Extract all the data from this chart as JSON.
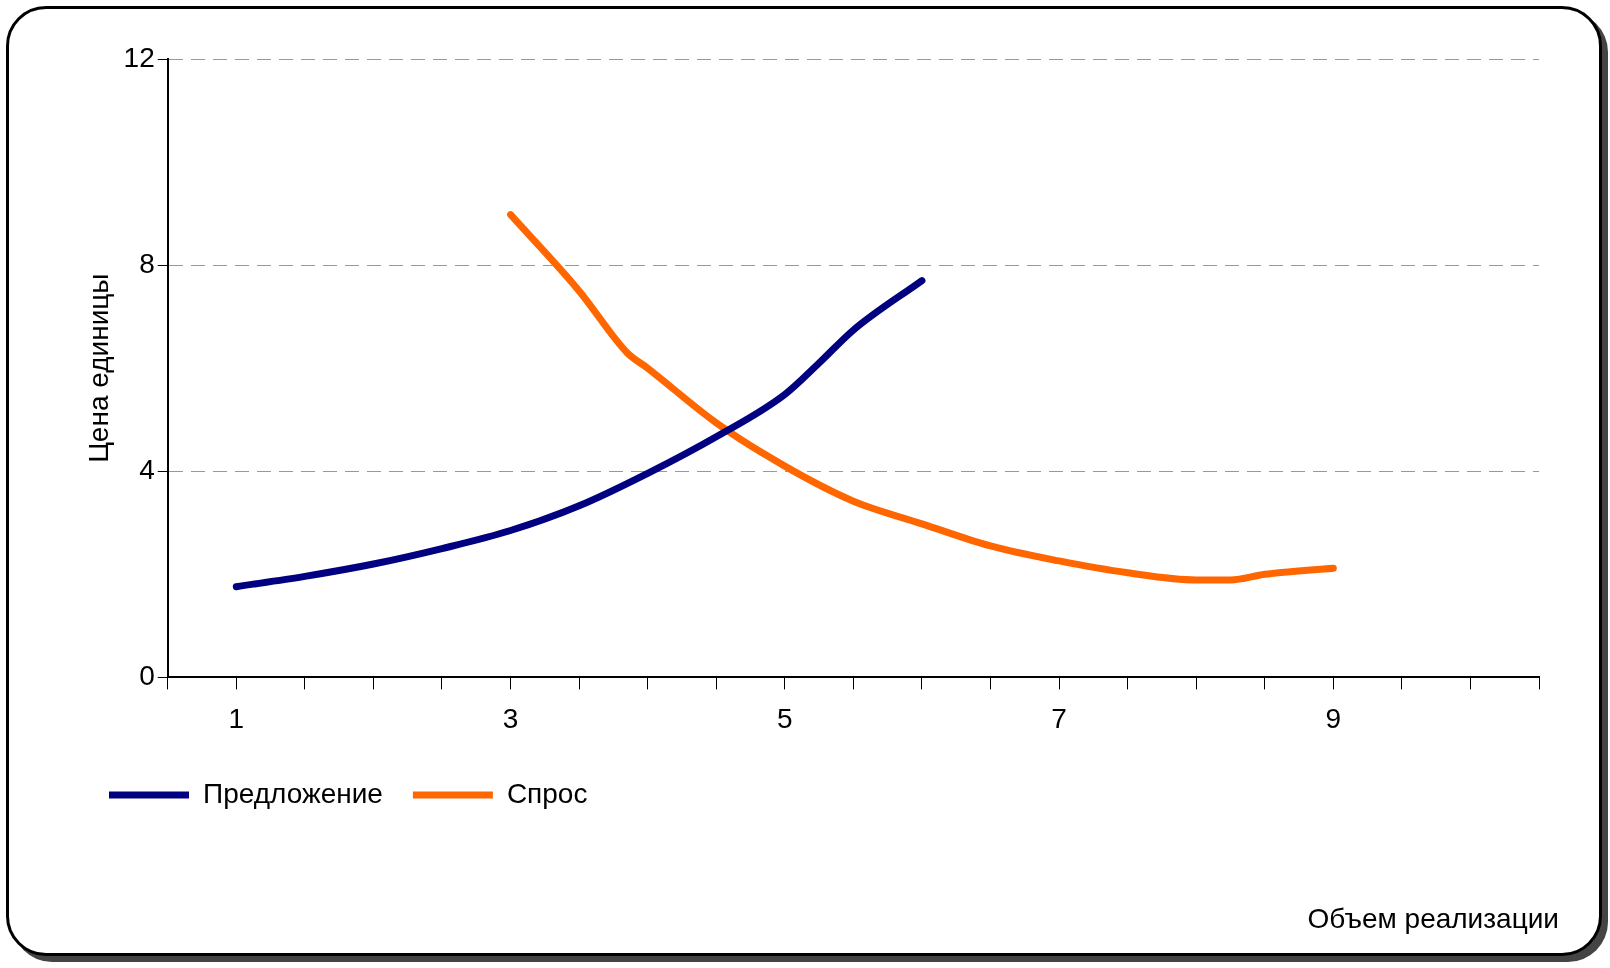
{
  "chart_data": {
    "type": "line",
    "annotations": [
      "Объем реализации"
    ],
    "ylabel": "Цена единицы",
    "xlim": [
      0.5,
      10.5
    ],
    "xticks": [
      {
        "value": 0.5,
        "label": null
      },
      1,
      {
        "value": 1.5,
        "label": null
      },
      {
        "value": 2,
        "label": null
      },
      {
        "value": 2.5,
        "label": null
      },
      3,
      {
        "value": 3.5,
        "label": null
      },
      {
        "value": 4,
        "label": null
      },
      {
        "value": 4.5,
        "label": null
      },
      5,
      {
        "value": 5.5,
        "label": null
      },
      {
        "value": 6,
        "label": null
      },
      {
        "value": 6.5,
        "label": null
      },
      7,
      {
        "value": 7.5,
        "label": null
      },
      {
        "value": 8,
        "label": null
      },
      {
        "value": 8.5,
        "label": null
      },
      9,
      {
        "value": 9.5,
        "label": null
      },
      {
        "value": 10,
        "label": null
      },
      {
        "value": 10.5,
        "label": null
      }
    ],
    "ylim": [
      0,
      12
    ],
    "yticks": [
      0,
      4,
      8,
      12
    ],
    "grid": "y",
    "legend": "bottom",
    "marker": "none",
    "line_style": "solid",
    "series": [
      {
        "name": "Предложение",
        "color": "#000080",
        "x": [
          1,
          1.5,
          2,
          2.5,
          3,
          3.5,
          4,
          4.5,
          5,
          5.25,
          5.5,
          6
        ],
        "values": [
          1.76,
          1.96,
          2.2,
          2.5,
          2.85,
          3.33,
          3.96,
          4.67,
          5.49,
          6.1,
          6.74,
          7.7
        ]
      },
      {
        "name": "Спрос",
        "color": "#ff6600",
        "x": [
          3,
          3.5,
          3.85,
          4,
          4.5,
          5,
          5.5,
          6,
          6.5,
          7,
          7.5,
          8,
          8.25,
          8.5,
          9
        ],
        "values": [
          8.98,
          7.5,
          6.3,
          6.0,
          4.94,
          4.1,
          3.42,
          2.98,
          2.55,
          2.26,
          2.03,
          1.89,
          1.89,
          2.0,
          2.12
        ]
      }
    ]
  }
}
